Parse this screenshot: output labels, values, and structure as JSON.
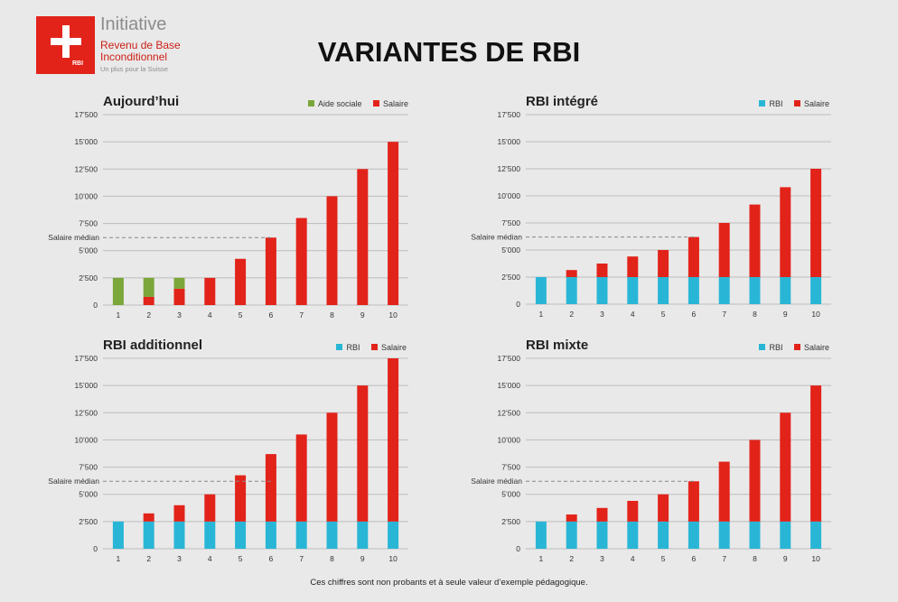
{
  "logo": {
    "badge": "RBI",
    "line1": "Initiative",
    "line2": "Revenu de Base",
    "line3": "Inconditionnel",
    "line4": "Un plus pour la Suisse"
  },
  "title": "VARIANTES DE RBI",
  "footer": "Ces chiffres sont non probants et à seule valeur d’exemple pédagogique.",
  "colors": {
    "rbi": "#29b6d6",
    "salaire": "#e2231a",
    "aide": "#7ba63a",
    "grid": "#bdbdbd",
    "median": "#888888"
  },
  "chart_data": [
    {
      "type": "bar",
      "stacked": true,
      "title": "Aujourd’hui",
      "categories": [
        "1",
        "2",
        "3",
        "4",
        "5",
        "6",
        "7",
        "8",
        "9",
        "10"
      ],
      "ylim": [
        0,
        17500
      ],
      "yticks": [
        "0",
        "2’500",
        "5’000",
        "7’500",
        "10’000",
        "12’500",
        "15’000",
        "17’500"
      ],
      "median_label": "Salaire médian",
      "median_value": 6200,
      "legend_placement": "top-right",
      "series": [
        {
          "name": "Salaire",
          "color": "#e2231a",
          "values": [
            0,
            750,
            1500,
            2500,
            4250,
            6200,
            8000,
            10000,
            12500,
            15000
          ]
        },
        {
          "name": "Aide sociale",
          "color": "#7ba63a",
          "values": [
            2500,
            1750,
            1000,
            0,
            0,
            0,
            0,
            0,
            0,
            0
          ]
        }
      ],
      "legend": [
        {
          "name": "Aide sociale",
          "color": "#7ba63a"
        },
        {
          "name": "Salaire",
          "color": "#e2231a"
        }
      ]
    },
    {
      "type": "bar",
      "stacked": true,
      "title": "RBI intégré",
      "categories": [
        "1",
        "2",
        "3",
        "4",
        "5",
        "6",
        "7",
        "8",
        "9",
        "10"
      ],
      "ylim": [
        0,
        17500
      ],
      "yticks": [
        "0",
        "2’500",
        "5’000",
        "7’500",
        "10’000",
        "12’500",
        "15’000",
        "17’500"
      ],
      "median_label": "Salaire médian",
      "median_value": 6200,
      "legend_placement": "top-right",
      "series": [
        {
          "name": "RBI",
          "color": "#29b6d6",
          "values": [
            2500,
            2500,
            2500,
            2500,
            2500,
            2500,
            2500,
            2500,
            2500,
            2500
          ]
        },
        {
          "name": "Salaire",
          "color": "#e2231a",
          "values": [
            0,
            650,
            1250,
            1900,
            2500,
            3700,
            5000,
            6700,
            8300,
            10000
          ]
        }
      ],
      "legend": [
        {
          "name": "RBI",
          "color": "#29b6d6"
        },
        {
          "name": "Salaire",
          "color": "#e2231a"
        }
      ]
    },
    {
      "type": "bar",
      "stacked": true,
      "title": "RBI additionnel",
      "categories": [
        "1",
        "2",
        "3",
        "4",
        "5",
        "6",
        "7",
        "8",
        "9",
        "10"
      ],
      "ylim": [
        0,
        17500
      ],
      "yticks": [
        "0",
        "2’500",
        "5’000",
        "7’500",
        "10’000",
        "12’500",
        "15’000",
        "17’500"
      ],
      "median_label": "Salaire médian",
      "median_value": 6200,
      "legend_placement": "top-right",
      "series": [
        {
          "name": "RBI",
          "color": "#29b6d6",
          "values": [
            2500,
            2500,
            2500,
            2500,
            2500,
            2500,
            2500,
            2500,
            2500,
            2500
          ]
        },
        {
          "name": "Salaire",
          "color": "#e2231a",
          "values": [
            0,
            750,
            1500,
            2500,
            4250,
            6200,
            8000,
            10000,
            12500,
            15000
          ]
        }
      ],
      "legend": [
        {
          "name": "RBI",
          "color": "#29b6d6"
        },
        {
          "name": "Salaire",
          "color": "#e2231a"
        }
      ]
    },
    {
      "type": "bar",
      "stacked": true,
      "title": "RBI mixte",
      "categories": [
        "1",
        "2",
        "3",
        "4",
        "5",
        "6",
        "7",
        "8",
        "9",
        "10"
      ],
      "ylim": [
        0,
        17500
      ],
      "yticks": [
        "0",
        "2’500",
        "5’000",
        "7’500",
        "10’000",
        "12’500",
        "15’000",
        "17’500"
      ],
      "median_label": "Salaire médian",
      "median_value": 6200,
      "legend_placement": "top-right",
      "series": [
        {
          "name": "RBI",
          "color": "#29b6d6",
          "values": [
            2500,
            2500,
            2500,
            2500,
            2500,
            2500,
            2500,
            2500,
            2500,
            2500
          ]
        },
        {
          "name": "Salaire",
          "color": "#e2231a",
          "values": [
            0,
            650,
            1250,
            1900,
            2500,
            3700,
            5500,
            7500,
            10000,
            12500
          ]
        }
      ],
      "legend": [
        {
          "name": "RBI",
          "color": "#29b6d6"
        },
        {
          "name": "Salaire",
          "color": "#e2231a"
        }
      ]
    }
  ]
}
